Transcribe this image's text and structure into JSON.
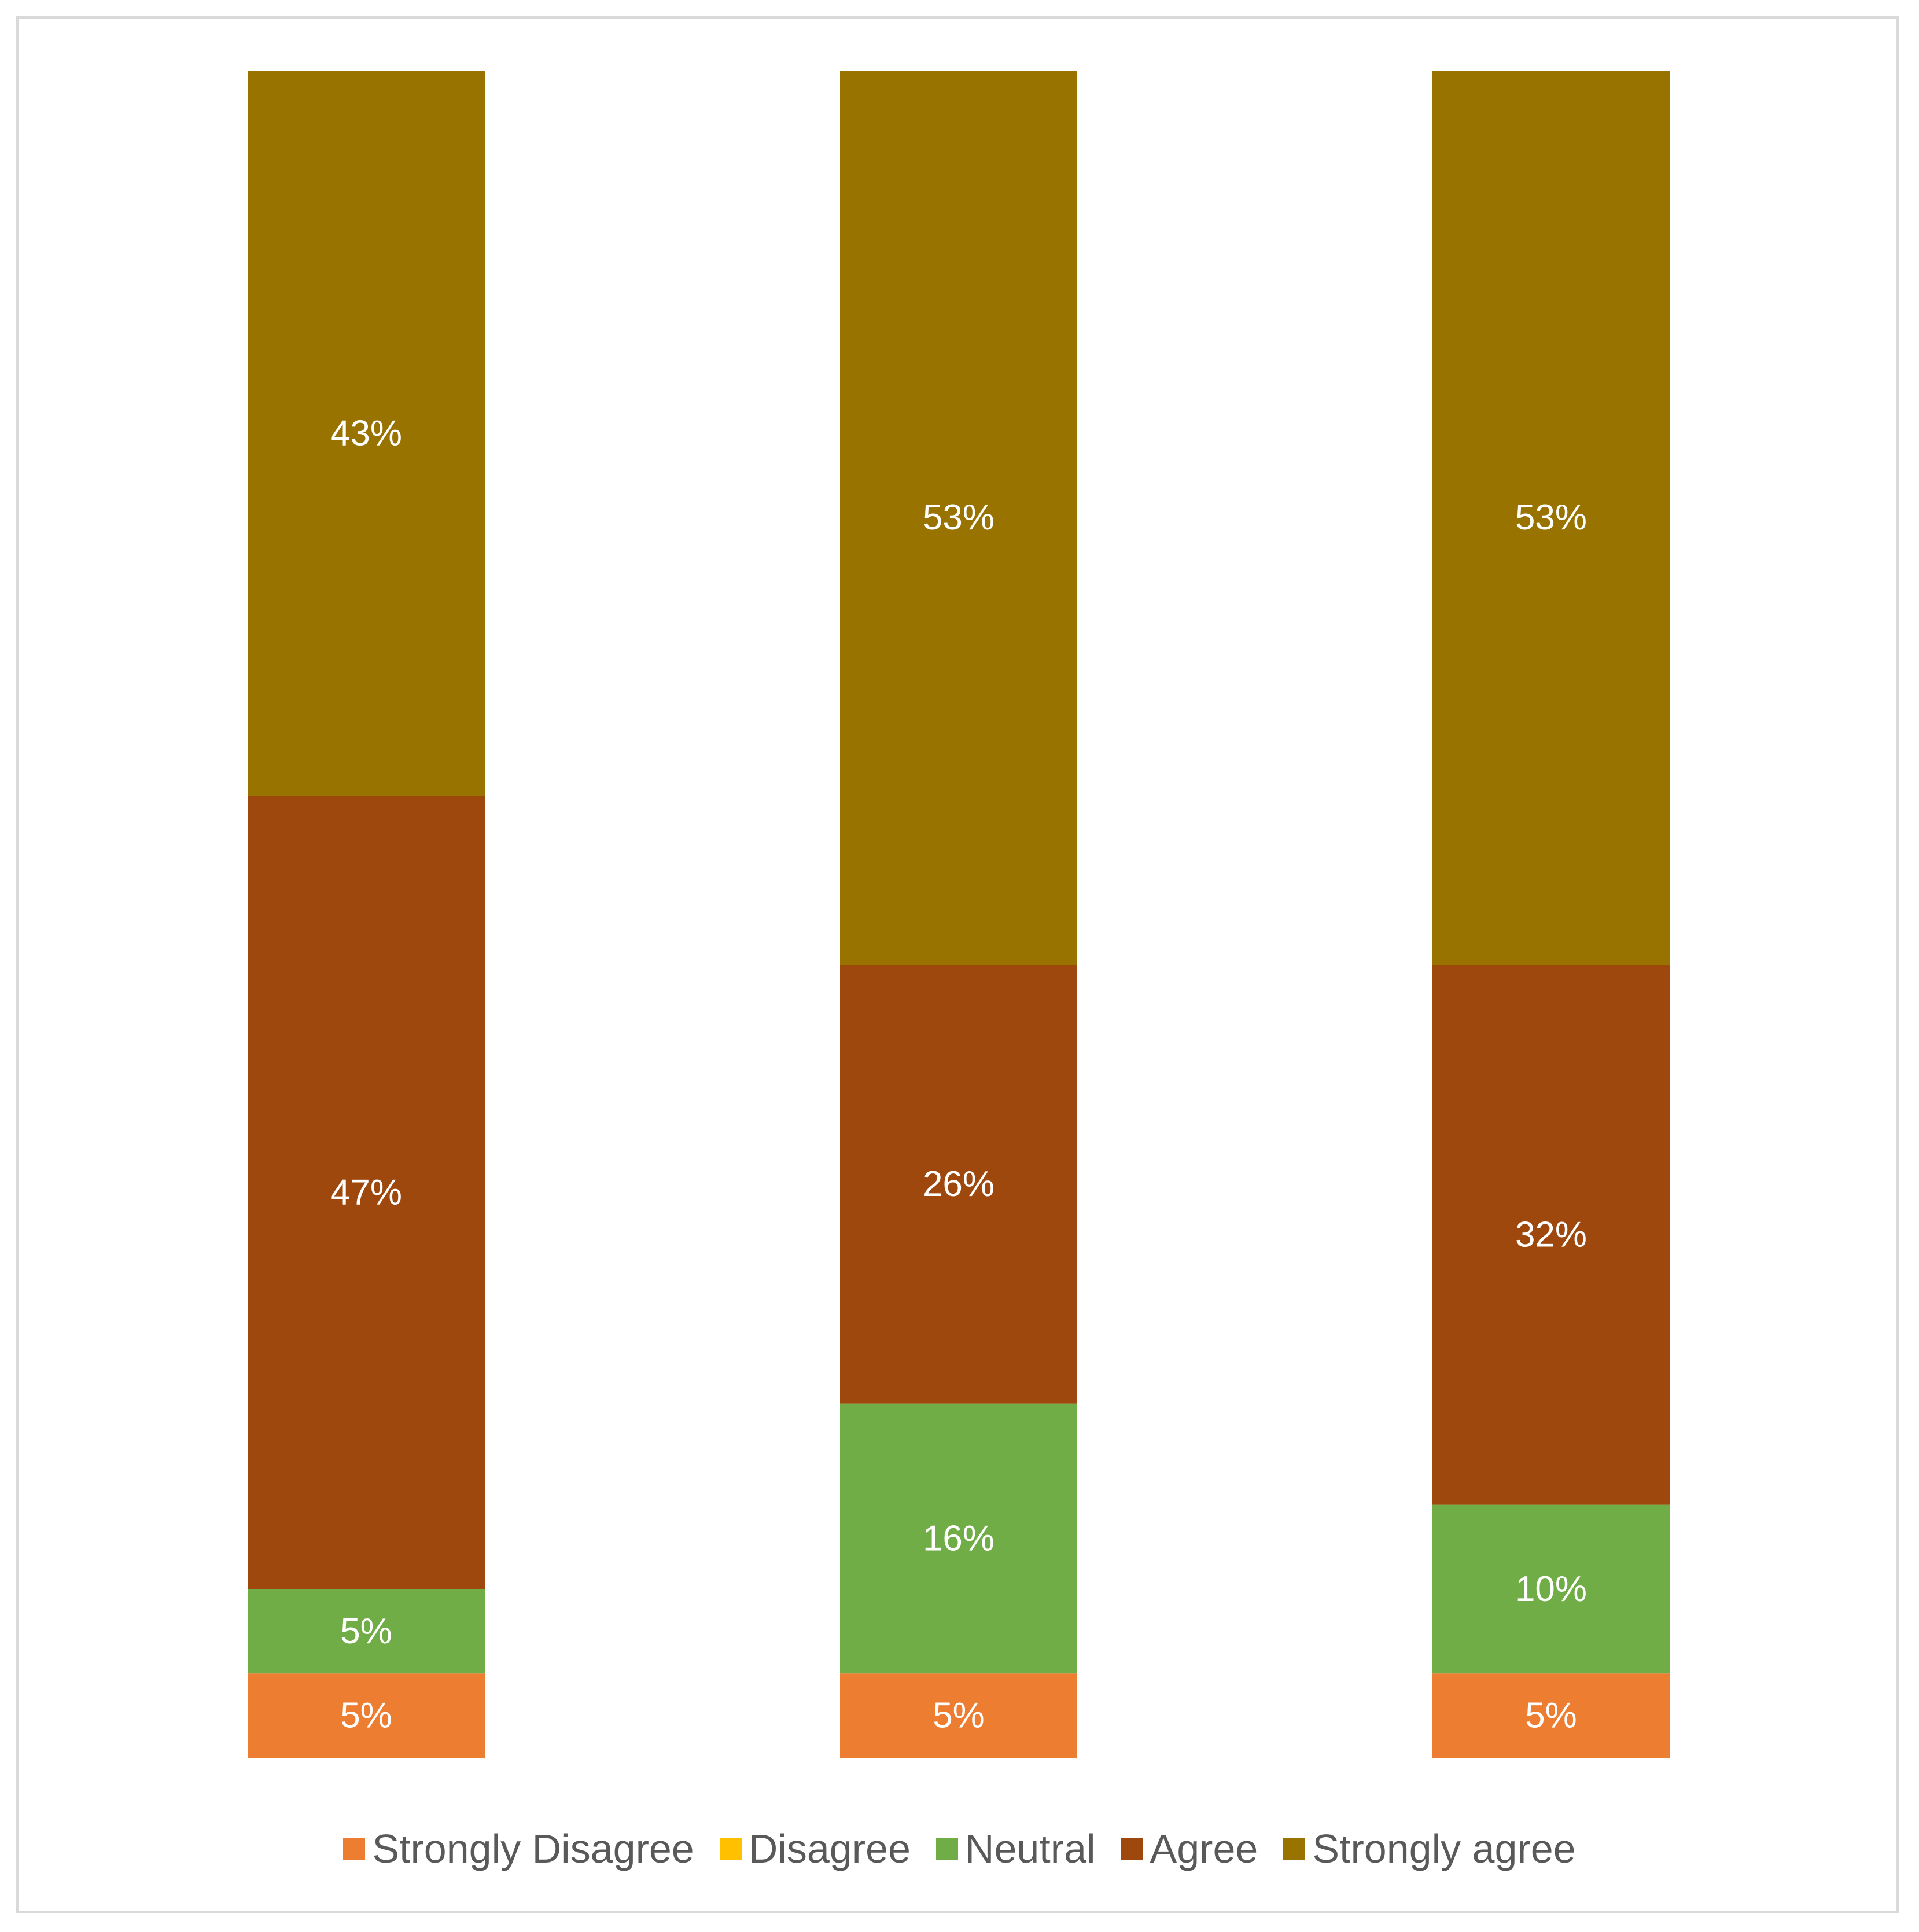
{
  "chart_data": {
    "type": "bar",
    "stacked": true,
    "categories": [
      "",
      "",
      ""
    ],
    "ylim": [
      0,
      100
    ],
    "grid": false,
    "legend_position": "bottom",
    "series": [
      {
        "name": "Strongly Disagree",
        "color": "#ED7D31",
        "values": [
          5,
          5,
          5
        ],
        "labels": [
          "5%",
          "5%",
          "5%"
        ]
      },
      {
        "name": "Disagree",
        "color": "#FFC000",
        "values": [
          0,
          0,
          0
        ],
        "labels": [
          "",
          "",
          ""
        ]
      },
      {
        "name": "Neutral",
        "color": "#70AD47",
        "values": [
          5,
          16,
          10
        ],
        "labels": [
          "5%",
          "16%",
          "10%"
        ]
      },
      {
        "name": "Agree",
        "color": "#9E480E",
        "values": [
          47,
          26,
          32
        ],
        "labels": [
          "47%",
          "26%",
          "32%"
        ]
      },
      {
        "name": "Strongly agree",
        "color": "#997300",
        "values": [
          43,
          53,
          53
        ],
        "labels": [
          "43%",
          "53%",
          "53%"
        ]
      }
    ]
  }
}
